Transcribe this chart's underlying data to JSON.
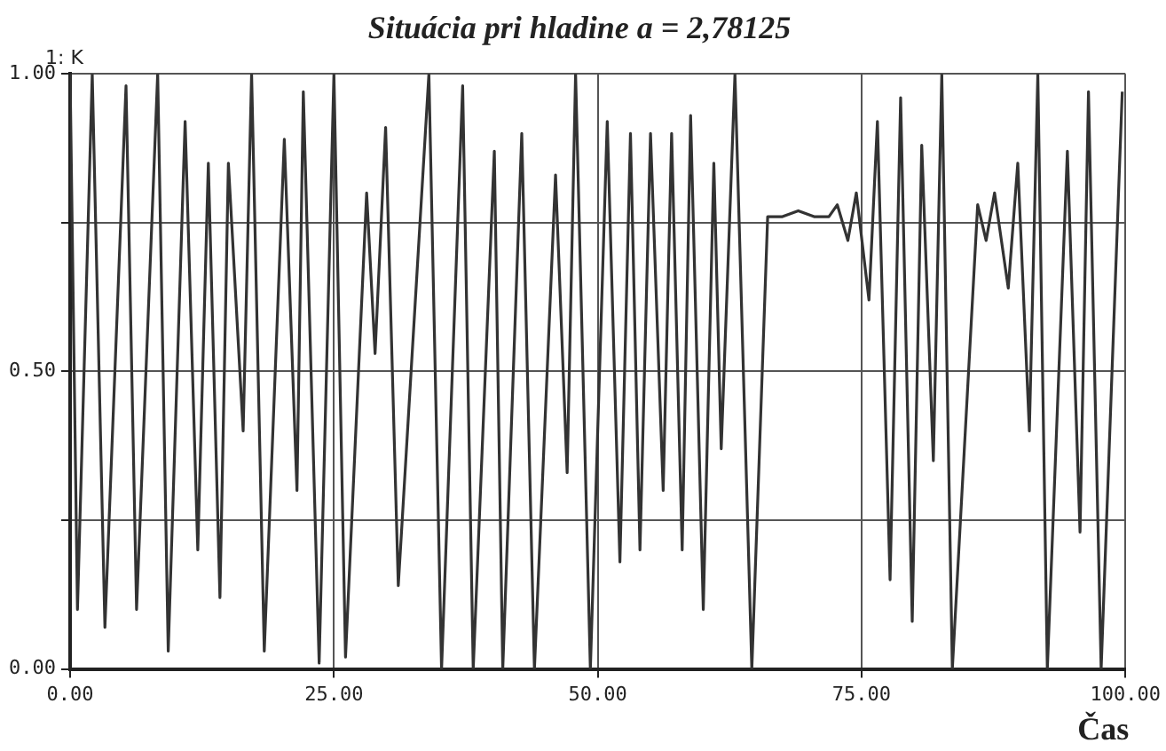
{
  "chart_data": {
    "type": "line",
    "title": "Situácia pri hladine a = 2,78125",
    "xlabel": "Čas",
    "ylabel": "1: K",
    "x": [
      0,
      0.7,
      2.1,
      3.3,
      5.3,
      6.3,
      8.3,
      9.3,
      10.9,
      12.1,
      13.1,
      14.2,
      15.0,
      16.4,
      17.2,
      18.4,
      20.3,
      21.5,
      22.1,
      23.6,
      25.0,
      26.1,
      28.1,
      28.9,
      29.9,
      31.1,
      34.0,
      35.2,
      37.2,
      38.2,
      40.2,
      41.0,
      42.8,
      44.0,
      46.0,
      47.1,
      47.9,
      49.3,
      50.9,
      52.1,
      53.1,
      54.0,
      55.0,
      56.2,
      57.0,
      58.0,
      58.8,
      60.0,
      61.0,
      61.7,
      63.0,
      64.6,
      66.1,
      67.5,
      69.0,
      70.5,
      71.9,
      72.7,
      73.7,
      74.5,
      75.7,
      76.5,
      77.7,
      78.7,
      79.8,
      80.7,
      81.8,
      82.6,
      83.6,
      86.0,
      86.8,
      87.6,
      88.9,
      89.8,
      90.9,
      91.7,
      92.6,
      94.5,
      95.7,
      96.5,
      97.7,
      99.7
    ],
    "series": [
      {
        "color": "#333333",
        "values": [
          1.0,
          0.1,
          1.0,
          0.07,
          0.98,
          0.1,
          1.0,
          0.03,
          0.92,
          0.2,
          0.85,
          0.12,
          0.85,
          0.4,
          1.0,
          0.03,
          0.89,
          0.3,
          0.97,
          0.01,
          1.0,
          0.02,
          0.8,
          0.53,
          0.91,
          0.14,
          1.0,
          0.0,
          0.98,
          0.0,
          0.87,
          0.0,
          0.9,
          0.0,
          0.83,
          0.33,
          1.0,
          0.0,
          0.92,
          0.18,
          0.9,
          0.2,
          0.9,
          0.3,
          0.9,
          0.2,
          0.93,
          0.1,
          0.85,
          0.37,
          1.0,
          0.0,
          0.76,
          0.76,
          0.77,
          0.76,
          0.76,
          0.78,
          0.72,
          0.8,
          0.62,
          0.92,
          0.15,
          0.96,
          0.08,
          0.88,
          0.35,
          1.0,
          0.0,
          0.78,
          0.72,
          0.8,
          0.64,
          0.85,
          0.4,
          1.0,
          0.0,
          0.87,
          0.23,
          0.97,
          0.0,
          0.97
        ]
      }
    ],
    "xlim": [
      0,
      100
    ],
    "xticks": [
      {
        "value": 0,
        "label": "0.00"
      },
      {
        "value": 25,
        "label": "25.00"
      },
      {
        "value": 50,
        "label": "50.00"
      },
      {
        "value": 75,
        "label": "75.00"
      },
      {
        "value": 100,
        "label": "100.00"
      }
    ],
    "ylim": [
      0,
      1
    ],
    "yticks": [
      {
        "value": 0,
        "label": "0.00"
      },
      {
        "value": 0.25,
        "label": null
      },
      {
        "value": 0.5,
        "label": "0.50"
      },
      {
        "value": 0.75,
        "label": null
      },
      {
        "value": 1,
        "label": "1.00"
      }
    ],
    "grid": true,
    "legend": false,
    "marker": "none",
    "line_style": "solid"
  }
}
